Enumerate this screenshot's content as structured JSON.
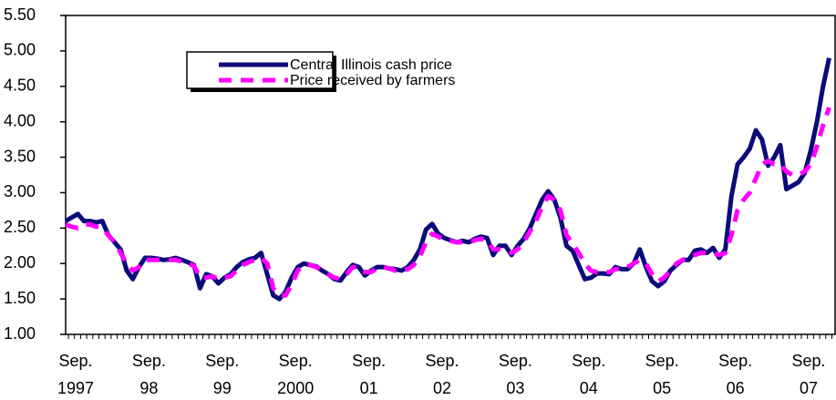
{
  "chart_data": {
    "type": "line",
    "categories": [
      [
        "Sep.",
        "1997"
      ],
      null,
      null,
      null,
      null,
      null,
      null,
      null,
      null,
      null,
      null,
      null,
      [
        "Sep.",
        "98"
      ],
      null,
      null,
      null,
      null,
      null,
      null,
      null,
      null,
      null,
      null,
      null,
      [
        "Sep.",
        "99"
      ],
      null,
      null,
      null,
      null,
      null,
      null,
      null,
      null,
      null,
      null,
      null,
      [
        "Sep.",
        "2000"
      ],
      null,
      null,
      null,
      null,
      null,
      null,
      null,
      null,
      null,
      null,
      null,
      [
        "Sep.",
        "01"
      ],
      null,
      null,
      null,
      null,
      null,
      null,
      null,
      null,
      null,
      null,
      null,
      [
        "Sep.",
        "02"
      ],
      null,
      null,
      null,
      null,
      null,
      null,
      null,
      null,
      null,
      null,
      null,
      [
        "Sep.",
        "03"
      ],
      null,
      null,
      null,
      null,
      null,
      null,
      null,
      null,
      null,
      null,
      null,
      [
        "Sep.",
        "04"
      ],
      null,
      null,
      null,
      null,
      null,
      null,
      null,
      null,
      null,
      null,
      null,
      [
        "Sep.",
        "05"
      ],
      null,
      null,
      null,
      null,
      null,
      null,
      null,
      null,
      null,
      null,
      null,
      [
        "Sep.",
        "06"
      ],
      null,
      null,
      null,
      null,
      null,
      null,
      null,
      null,
      null,
      null,
      null,
      [
        "Sep.",
        "07"
      ],
      null,
      null,
      null,
      null,
      null
    ],
    "series": [
      {
        "name": "Central Illinois cash price",
        "color": "#0b0b7a",
        "style": "solid",
        "values": [
          2.6,
          2.65,
          2.7,
          2.6,
          2.6,
          2.58,
          2.6,
          2.4,
          2.3,
          2.2,
          1.9,
          1.78,
          1.95,
          2.08,
          2.08,
          2.07,
          2.05,
          2.06,
          2.08,
          2.05,
          2.02,
          1.98,
          1.65,
          1.85,
          1.82,
          1.72,
          1.8,
          1.85,
          1.95,
          2.02,
          2.06,
          2.08,
          2.15,
          1.85,
          1.55,
          1.5,
          1.6,
          1.8,
          1.95,
          2.0,
          1.98,
          1.96,
          1.9,
          1.85,
          1.78,
          1.76,
          1.88,
          1.98,
          1.95,
          1.83,
          1.9,
          1.95,
          1.95,
          1.93,
          1.92,
          1.9,
          1.95,
          2.05,
          2.2,
          2.48,
          2.56,
          2.42,
          2.36,
          2.33,
          2.3,
          2.32,
          2.3,
          2.35,
          2.38,
          2.36,
          2.12,
          2.25,
          2.25,
          2.12,
          2.25,
          2.35,
          2.5,
          2.7,
          2.9,
          3.02,
          2.9,
          2.65,
          2.25,
          2.18,
          1.98,
          1.78,
          1.8,
          1.86,
          1.86,
          1.85,
          1.95,
          1.92,
          1.92,
          2.0,
          2.2,
          1.95,
          1.75,
          1.68,
          1.75,
          1.9,
          1.98,
          2.05,
          2.05,
          2.18,
          2.2,
          2.15,
          2.22,
          2.08,
          2.2,
          2.95,
          3.4,
          3.5,
          3.62,
          3.88,
          3.75,
          3.38,
          3.5,
          3.67,
          3.05,
          3.1,
          3.15,
          3.28,
          3.6,
          4.0,
          4.5,
          4.9
        ]
      },
      {
        "name": "Price received by farmers",
        "color": "#ff00ff",
        "style": "dashed",
        "values": [
          2.55,
          2.52,
          2.5,
          2.55,
          2.55,
          2.52,
          2.5,
          2.4,
          2.3,
          2.15,
          2.0,
          1.9,
          1.95,
          2.05,
          2.05,
          2.05,
          2.05,
          2.05,
          2.05,
          2.03,
          2.0,
          1.97,
          1.8,
          1.8,
          1.82,
          1.78,
          1.8,
          1.82,
          1.9,
          1.98,
          2.02,
          2.05,
          2.08,
          2.0,
          1.65,
          1.55,
          1.55,
          1.7,
          1.9,
          1.98,
          1.98,
          1.95,
          1.9,
          1.85,
          1.8,
          1.78,
          1.85,
          1.95,
          1.95,
          1.88,
          1.88,
          1.93,
          1.95,
          1.93,
          1.9,
          1.9,
          1.92,
          1.98,
          2.1,
          2.3,
          2.42,
          2.38,
          2.33,
          2.32,
          2.3,
          2.3,
          2.3,
          2.33,
          2.35,
          2.33,
          2.2,
          2.2,
          2.18,
          2.15,
          2.2,
          2.3,
          2.45,
          2.6,
          2.8,
          2.95,
          2.9,
          2.75,
          2.4,
          2.28,
          2.15,
          2.0,
          1.9,
          1.88,
          1.88,
          1.88,
          1.92,
          1.93,
          1.95,
          2.0,
          2.05,
          2.0,
          1.85,
          1.75,
          1.8,
          1.9,
          2.0,
          2.05,
          2.08,
          2.12,
          2.15,
          2.15,
          2.15,
          2.12,
          2.15,
          2.4,
          2.75,
          2.9,
          3.0,
          3.2,
          3.4,
          3.45,
          3.4,
          3.4,
          3.3,
          3.25,
          3.25,
          3.3,
          3.4,
          3.65,
          3.95,
          4.2
        ]
      }
    ],
    "ylim": [
      1.0,
      5.5
    ],
    "yticks": [
      {
        "value": 1.0,
        "label": "1.00"
      },
      {
        "value": 1.5,
        "label": "1.50"
      },
      {
        "value": 2.0,
        "label": "2.00"
      },
      {
        "value": 2.5,
        "label": "2.50"
      },
      {
        "value": 3.0,
        "label": "3.00"
      },
      {
        "value": 3.5,
        "label": "3.50"
      },
      {
        "value": 4.0,
        "label": "4.00"
      },
      {
        "value": 4.5,
        "label": "4.50"
      },
      {
        "value": 5.0,
        "label": "5.00"
      },
      {
        "value": 5.5,
        "label": "5.50"
      }
    ],
    "grid": false
  }
}
